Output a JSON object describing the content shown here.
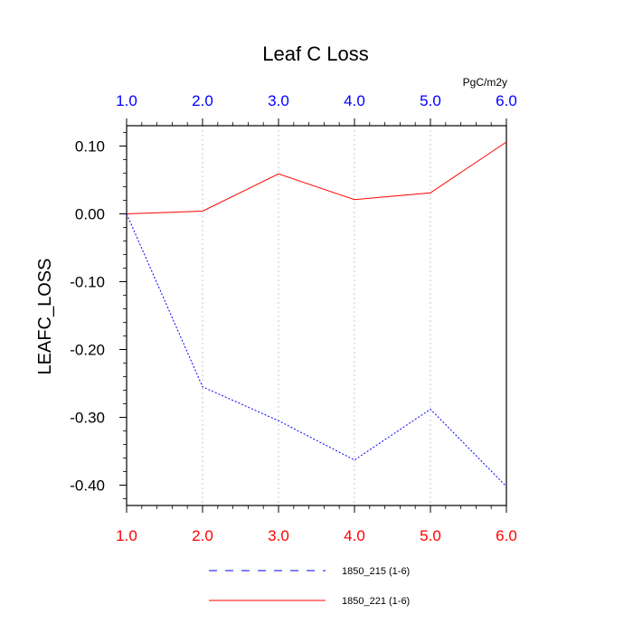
{
  "chart_data": {
    "type": "line",
    "title": "Leaf C Loss",
    "ylabel": "LEAFC_LOSS",
    "units": "PgC/m2y",
    "xlim": [
      1.0,
      6.0
    ],
    "ylim": [
      -0.43,
      0.13
    ],
    "x": [
      1.0,
      2.0,
      3.0,
      4.0,
      5.0,
      6.0
    ],
    "x_tick_labels": [
      "1.0",
      "2.0",
      "3.0",
      "4.0",
      "5.0",
      "6.0"
    ],
    "y_ticks": [
      0.1,
      0.0,
      -0.1,
      -0.2,
      -0.3,
      -0.4
    ],
    "y_tick_labels": [
      "0.10",
      "0.00",
      "-0.10",
      "-0.20",
      "-0.30",
      "-0.40"
    ],
    "grid": "vertical-dotted",
    "legend_position": "bottom-center",
    "top_axis_color": "#0000ff",
    "bottom_axis_color": "#ff0000",
    "series": [
      {
        "name": "1850_215 (1-6)",
        "color": "#0000ff",
        "style": "dashed",
        "values": [
          0.0,
          -0.255,
          -0.305,
          -0.363,
          -0.288,
          -0.402
        ]
      },
      {
        "name": "1850_221 (1-6)",
        "color": "#ff0000",
        "style": "solid",
        "values": [
          0.0,
          0.004,
          0.059,
          0.021,
          0.031,
          0.106
        ]
      }
    ]
  }
}
